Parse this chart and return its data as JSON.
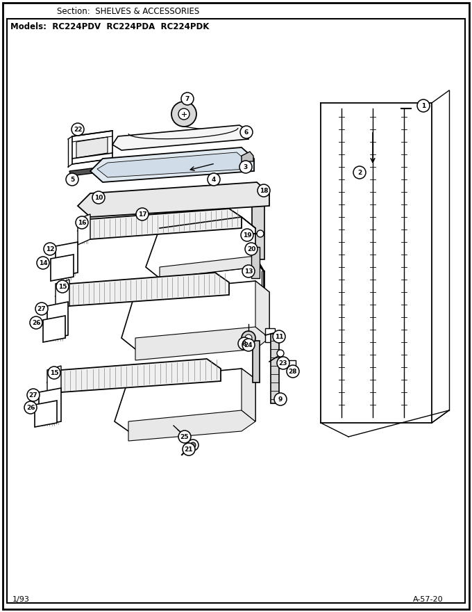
{
  "section_title": "Section:  SHELVES & ACCESSORIES",
  "models_title": "Models:  RC224PDV  RC224PDA  RC224PDK",
  "footer_left": "1/93",
  "footer_right": "A-57-20"
}
